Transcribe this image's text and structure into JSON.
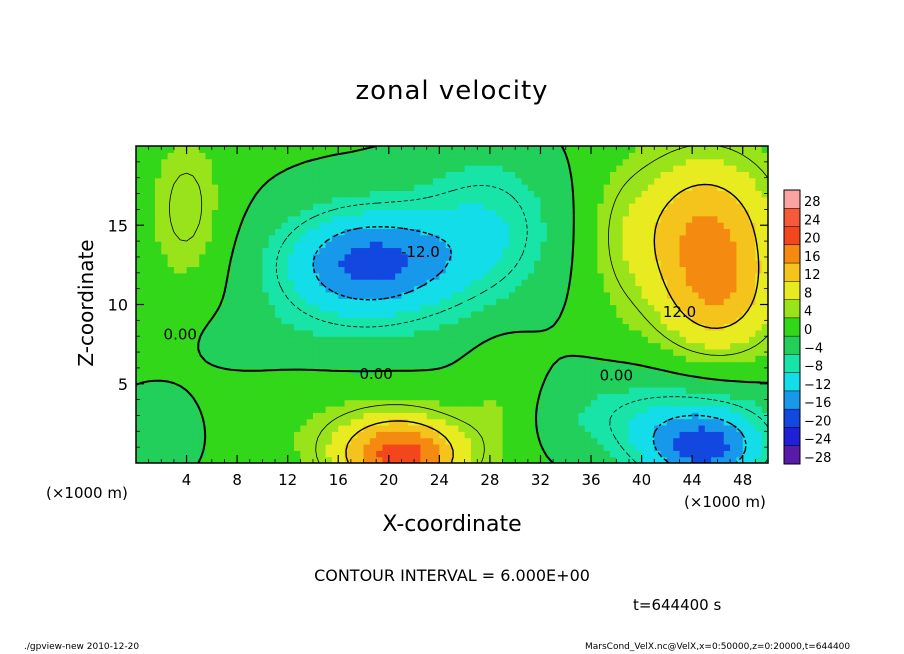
{
  "chart_data": {
    "type": "heatmap",
    "title": "zonal velocity",
    "xlabel": "X-coordinate",
    "ylabel": "Z-coordinate",
    "x_unit_label": "(×1000 m)",
    "xlim": [
      0,
      50
    ],
    "ylim": [
      0,
      20
    ],
    "x_ticks": [
      4,
      8,
      12,
      16,
      20,
      24,
      28,
      32,
      36,
      40,
      44,
      48
    ],
    "y_ticks": [
      5,
      10,
      15
    ],
    "colorbar": {
      "levels": [
        28,
        24,
        20,
        16,
        12,
        8,
        4,
        0,
        -4,
        -8,
        -12,
        -16,
        -20,
        -24,
        -28
      ],
      "colors": [
        "#f9a3a3",
        "#f55a3a",
        "#f3461c",
        "#f58a10",
        "#f4c31c",
        "#e9eb21",
        "#99e31b",
        "#32d71a",
        "#21cf5a",
        "#18e4a8",
        "#12dde8",
        "#1898ea",
        "#1248e0",
        "#2020d8",
        "#5a1aa8"
      ],
      "ylim": [
        -30,
        30
      ]
    },
    "contour_labels": [
      {
        "text": "0.00",
        "x": 3.5,
        "z": 7.8
      },
      {
        "text": "-12.0",
        "x": 22.5,
        "z": 13.0
      },
      {
        "text": "0.00",
        "x": 19.0,
        "z": 5.3
      },
      {
        "text": "0.00",
        "x": 38.0,
        "z": 5.2
      },
      {
        "text": "12.0",
        "x": 43.0,
        "z": 9.2
      }
    ],
    "blobs": [
      {
        "x": 4,
        "z": 16,
        "rx": 3,
        "rz": 5,
        "v": 6
      },
      {
        "x": 6,
        "z": 12,
        "rx": 6,
        "rz": 7,
        "v": 1
      },
      {
        "x": 14,
        "z": 17,
        "rx": 6,
        "rz": 5,
        "v": 0
      },
      {
        "x": 18.5,
        "z": 12.8,
        "rx": 6.5,
        "rz": 3.2,
        "v": -13
      },
      {
        "x": 17,
        "z": 11,
        "rx": 10,
        "rz": 6,
        "v": -6
      },
      {
        "x": 28,
        "z": 15,
        "rx": 6,
        "rz": 5,
        "v": -8
      },
      {
        "x": 21,
        "z": 0.5,
        "rx": 5,
        "rz": 2.5,
        "v": 20
      },
      {
        "x": 16,
        "z": 3,
        "rx": 10,
        "rz": 4,
        "v": 3
      },
      {
        "x": 8,
        "z": 7.5,
        "rx": 4,
        "rz": 2,
        "v": -2
      },
      {
        "x": 45,
        "z": 15,
        "rx": 6,
        "rz": 5,
        "v": 14
      },
      {
        "x": 46,
        "z": 10,
        "rx": 5,
        "rz": 4,
        "v": 10
      },
      {
        "x": 38,
        "z": 14,
        "rx": 3,
        "rz": 5,
        "v": 3
      },
      {
        "x": 45,
        "z": 0.8,
        "rx": 5,
        "rz": 2.5,
        "v": -16
      },
      {
        "x": 41,
        "z": 3,
        "rx": 10,
        "rz": 3,
        "v": -7
      },
      {
        "x": 2,
        "z": 2,
        "rx": 4,
        "rz": 3,
        "v": -4
      },
      {
        "x": 29,
        "z": 4,
        "rx": 3,
        "rz": 4,
        "v": 4
      }
    ]
  },
  "labels": {
    "contour_interval": "CONTOUR INTERVAL = 6.000E+00",
    "time": "t=644400 s",
    "footer_left": "./gpview-new   2010-12-20",
    "footer_right": "MarsCond_VelX.nc@VelX,x=0:50000,z=0:20000,t=644400"
  }
}
